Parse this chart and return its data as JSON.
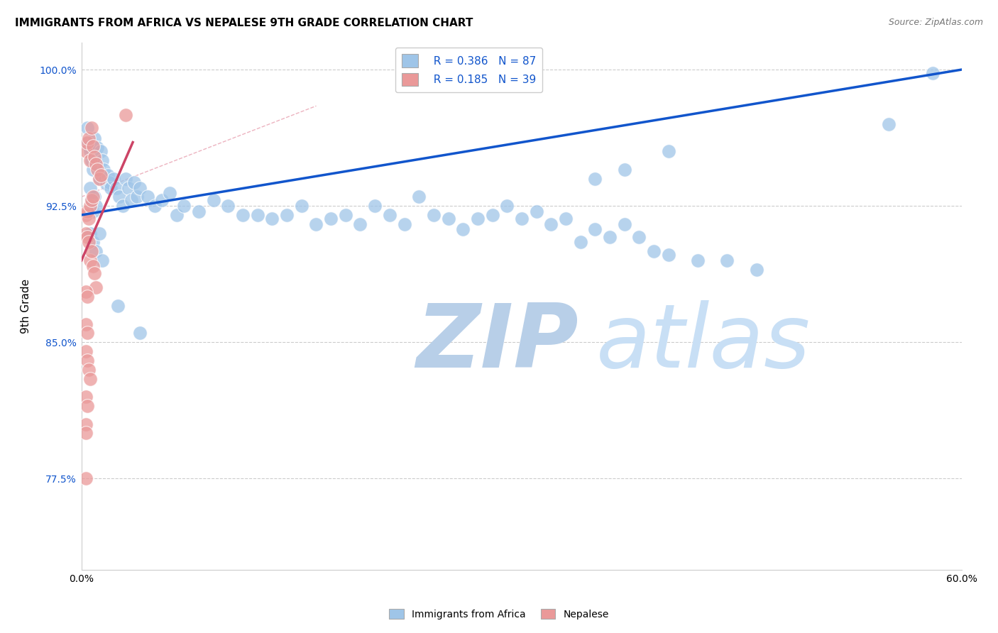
{
  "title": "IMMIGRANTS FROM AFRICA VS NEPALESE 9TH GRADE CORRELATION CHART",
  "source": "Source: ZipAtlas.com",
  "ylabel": "9th Grade",
  "x_min": 0.0,
  "x_max": 0.6,
  "y_min": 0.725,
  "y_max": 1.015,
  "x_ticks": [
    0.0,
    0.1,
    0.2,
    0.3,
    0.4,
    0.5,
    0.6
  ],
  "x_tick_labels": [
    "0.0%",
    "",
    "",
    "",
    "",
    "",
    "60.0%"
  ],
  "y_ticks": [
    0.775,
    0.85,
    0.925,
    1.0
  ],
  "y_tick_labels": [
    "77.5%",
    "85.0%",
    "92.5%",
    "100.0%"
  ],
  "blue_R": 0.386,
  "blue_N": 87,
  "pink_R": 0.185,
  "pink_N": 39,
  "blue_color": "#9fc5e8",
  "pink_color": "#ea9999",
  "blue_line_color": "#1155cc",
  "pink_line_color": "#cc4466",
  "grid_color": "#cccccc",
  "watermark_zip": "ZIP",
  "watermark_atlas": "atlas",
  "watermark_color": "#d0e4f5",
  "blue_scatter_x": [
    0.003,
    0.004,
    0.005,
    0.006,
    0.007,
    0.008,
    0.009,
    0.01,
    0.011,
    0.012,
    0.013,
    0.014,
    0.015,
    0.016,
    0.017,
    0.018,
    0.019,
    0.02,
    0.022,
    0.024,
    0.026,
    0.028,
    0.03,
    0.032,
    0.034,
    0.036,
    0.038,
    0.04,
    0.045,
    0.05,
    0.055,
    0.06,
    0.065,
    0.07,
    0.08,
    0.09,
    0.1,
    0.11,
    0.12,
    0.13,
    0.14,
    0.15,
    0.16,
    0.17,
    0.18,
    0.19,
    0.2,
    0.21,
    0.22,
    0.23,
    0.24,
    0.25,
    0.26,
    0.27,
    0.28,
    0.29,
    0.3,
    0.31,
    0.32,
    0.33,
    0.34,
    0.35,
    0.36,
    0.37,
    0.38,
    0.39,
    0.4,
    0.42,
    0.44,
    0.46,
    0.006,
    0.007,
    0.008,
    0.009,
    0.01,
    0.35,
    0.37,
    0.4,
    0.55,
    0.58,
    0.006,
    0.008,
    0.01,
    0.012,
    0.014,
    0.025,
    0.04
  ],
  "blue_scatter_y": [
    0.96,
    0.968,
    0.958,
    0.955,
    0.95,
    0.945,
    0.962,
    0.948,
    0.957,
    0.94,
    0.955,
    0.95,
    0.945,
    0.94,
    0.937,
    0.942,
    0.938,
    0.935,
    0.94,
    0.935,
    0.93,
    0.925,
    0.94,
    0.935,
    0.928,
    0.938,
    0.93,
    0.935,
    0.93,
    0.925,
    0.928,
    0.932,
    0.92,
    0.925,
    0.922,
    0.928,
    0.925,
    0.92,
    0.92,
    0.918,
    0.92,
    0.925,
    0.915,
    0.918,
    0.92,
    0.915,
    0.925,
    0.92,
    0.915,
    0.93,
    0.92,
    0.918,
    0.912,
    0.918,
    0.92,
    0.925,
    0.918,
    0.922,
    0.915,
    0.918,
    0.905,
    0.912,
    0.908,
    0.915,
    0.908,
    0.9,
    0.898,
    0.895,
    0.895,
    0.89,
    0.935,
    0.928,
    0.922,
    0.93,
    0.925,
    0.94,
    0.945,
    0.955,
    0.97,
    0.998,
    0.91,
    0.905,
    0.9,
    0.91,
    0.895,
    0.87,
    0.855
  ],
  "pink_scatter_x": [
    0.003,
    0.004,
    0.005,
    0.006,
    0.007,
    0.008,
    0.009,
    0.01,
    0.011,
    0.012,
    0.013,
    0.003,
    0.004,
    0.005,
    0.006,
    0.007,
    0.008,
    0.003,
    0.004,
    0.005,
    0.006,
    0.007,
    0.008,
    0.009,
    0.01,
    0.003,
    0.004,
    0.003,
    0.004,
    0.003,
    0.004,
    0.005,
    0.006,
    0.003,
    0.004,
    0.003,
    0.003,
    0.003,
    0.03
  ],
  "pink_scatter_y": [
    0.955,
    0.96,
    0.962,
    0.95,
    0.968,
    0.958,
    0.952,
    0.948,
    0.945,
    0.94,
    0.942,
    0.92,
    0.922,
    0.918,
    0.925,
    0.928,
    0.93,
    0.91,
    0.908,
    0.905,
    0.895,
    0.9,
    0.892,
    0.888,
    0.88,
    0.878,
    0.875,
    0.86,
    0.855,
    0.845,
    0.84,
    0.835,
    0.83,
    0.82,
    0.815,
    0.805,
    0.8,
    0.775,
    0.975
  ],
  "blue_trend_x": [
    0.0,
    0.6
  ],
  "blue_trend_y": [
    0.92,
    1.0
  ],
  "pink_trend_x": [
    0.0,
    0.035
  ],
  "pink_trend_y": [
    0.895,
    0.96
  ],
  "dashed_line_x": [
    0.0,
    0.16
  ],
  "dashed_line_y": [
    0.93,
    0.98
  ]
}
